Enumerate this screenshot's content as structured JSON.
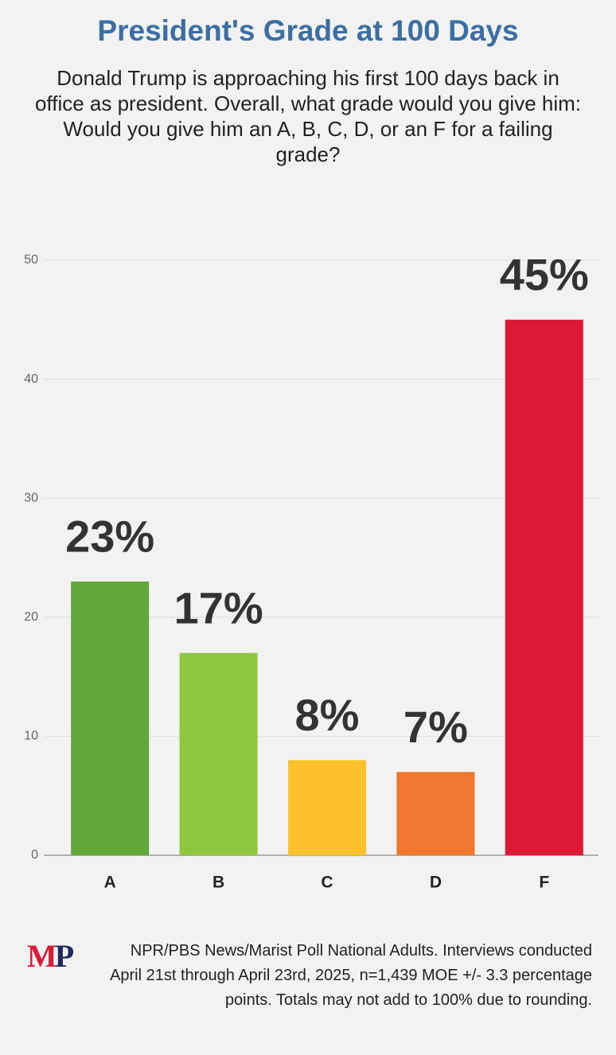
{
  "chart_data": {
    "type": "bar",
    "title": "President's Grade at 100 Days",
    "subtitle": "Donald Trump is approaching his first 100 days back in office as president. Overall, what grade would you give him: Would you give him an A, B, C, D, or an F for a failing grade?",
    "categories": [
      "A",
      "B",
      "C",
      "D",
      "F"
    ],
    "values": [
      23,
      17,
      8,
      7,
      45
    ],
    "value_labels": [
      "23%",
      "17%",
      "8%",
      "7%",
      "45%"
    ],
    "colors": [
      "#62a73b",
      "#8dc63f",
      "#fdc22b",
      "#f0772f",
      "#dc1a35"
    ],
    "ylim": [
      0,
      50
    ],
    "yticks": [
      0,
      10,
      20,
      30,
      40,
      50
    ],
    "grid": true,
    "logo": [
      "M",
      "P"
    ],
    "note": "NPR/PBS News/Marist Poll National Adults. Interviews conducted April 21st through April 23rd, 2025, n=1,439 MOE +/- 3.3 percentage points. Totals may not add to 100% due to rounding."
  }
}
